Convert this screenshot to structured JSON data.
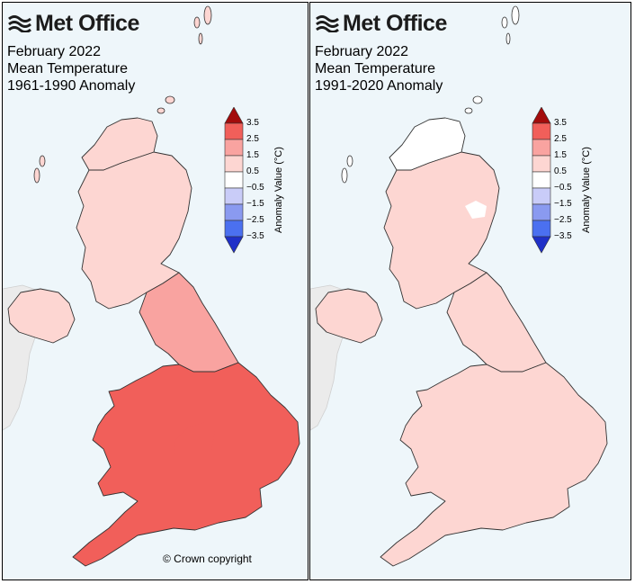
{
  "brand": "Met Office",
  "colors": {
    "background": "#eef6fa",
    "sea": "#eef6fa",
    "ireland_land": "#ebebeb",
    "boundary": "#333333",
    "scale": [
      "#1f30c8",
      "#4b70f0",
      "#8a9af0",
      "#c9ccf8",
      "#ffffff",
      "#fdd6d2",
      "#f9a3a0",
      "#f15f5a",
      "#a30c0c"
    ]
  },
  "colorbar": {
    "ticks": [
      "3.5",
      "2.5",
      "1.5",
      "0.5",
      "−0.5",
      "−1.5",
      "−2.5",
      "−3.5"
    ],
    "label": "Anomaly Value (°C)"
  },
  "panels": [
    {
      "title_lines": [
        "February 2022",
        "Mean Temperature",
        "1961-1990 Anomaly"
      ],
      "copyright": "© Crown copyright",
      "region_values": {
        "scotland_north": 1.0,
        "scotland_east_high": 0.5,
        "scotland_main": 1.2,
        "northern_ireland": 1.3,
        "northern_england": 2.3,
        "wales_england_south": 2.6,
        "midlands_hotspot": 3.2
      }
    },
    {
      "title_lines": [
        "February 2022",
        "Mean Temperature",
        "1991-2020 Anomaly"
      ],
      "copyright": "",
      "region_values": {
        "scotland_north": 0.3,
        "scotland_east_high": 0.0,
        "scotland_main": 0.6,
        "northern_ireland": 0.7,
        "northern_england": 1.2,
        "wales_england_south": 1.4,
        "midlands_hotspot": 1.4
      }
    }
  ]
}
